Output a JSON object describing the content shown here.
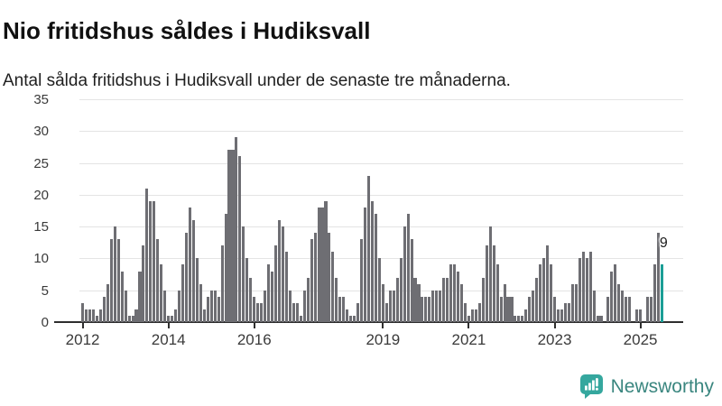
{
  "header": {
    "title": "Nio fritidshus såldes i Hudiksvall",
    "subtitle": "Antal sålda fritidshus i Hudiksvall under de senaste tre månaderna."
  },
  "chart_data": {
    "type": "bar",
    "title": "Nio fritidshus såldes i Hudiksvall",
    "subtitle": "Antal sålda fritidshus i Hudiksvall under de senaste tre månaderna.",
    "x_start": "2012-01",
    "x_frequency": "monthly",
    "values": [
      3,
      2,
      2,
      2,
      1,
      2,
      4,
      6,
      13,
      15,
      13,
      8,
      5,
      1,
      1,
      2,
      8,
      12,
      21,
      19,
      19,
      13,
      9,
      5,
      1,
      1,
      2,
      5,
      9,
      14,
      18,
      16,
      10,
      6,
      2,
      4,
      5,
      5,
      4,
      12,
      17,
      27,
      27,
      29,
      26,
      15,
      10,
      7,
      4,
      3,
      3,
      5,
      9,
      8,
      12,
      16,
      15,
      11,
      5,
      3,
      3,
      1,
      5,
      7,
      13,
      14,
      18,
      18,
      19,
      14,
      11,
      7,
      4,
      4,
      2,
      1,
      1,
      3,
      13,
      18,
      23,
      19,
      17,
      10,
      6,
      3,
      5,
      5,
      7,
      10,
      15,
      17,
      13,
      7,
      6,
      4,
      4,
      4,
      5,
      5,
      5,
      7,
      7,
      9,
      9,
      8,
      6,
      3,
      1,
      2,
      2,
      3,
      7,
      12,
      15,
      12,
      9,
      4,
      6,
      4,
      4,
      1,
      1,
      1,
      2,
      4,
      5,
      7,
      9,
      10,
      12,
      9,
      4,
      2,
      2,
      3,
      3,
      6,
      6,
      10,
      11,
      10,
      11,
      5,
      1,
      1,
      0,
      4,
      8,
      9,
      6,
      5,
      4,
      4,
      0,
      2,
      2,
      0,
      4,
      4,
      9,
      14,
      9
    ],
    "highlight": {
      "index": 162,
      "value": 9,
      "label": "9"
    },
    "y_ticks": [
      0,
      5,
      10,
      15,
      20,
      25,
      30,
      35
    ],
    "ylim": [
      0,
      35
    ],
    "x_ticks": [
      {
        "label": "2012",
        "index": 0
      },
      {
        "label": "2014",
        "index": 24
      },
      {
        "label": "2016",
        "index": 48
      },
      {
        "label": "2019",
        "index": 84
      },
      {
        "label": "2021",
        "index": 108
      },
      {
        "label": "2023",
        "index": 132
      },
      {
        "label": "2025",
        "index": 156
      }
    ],
    "bar_color": "#6e6e73",
    "highlight_color": "#1b9e96",
    "grid": true,
    "legend": "none"
  },
  "footer": {
    "brand": "Newsworthy",
    "brand_color": "#3a867f",
    "icon": "newsworthy-bubble-barchart-icon",
    "icon_color": "#35a79e"
  }
}
